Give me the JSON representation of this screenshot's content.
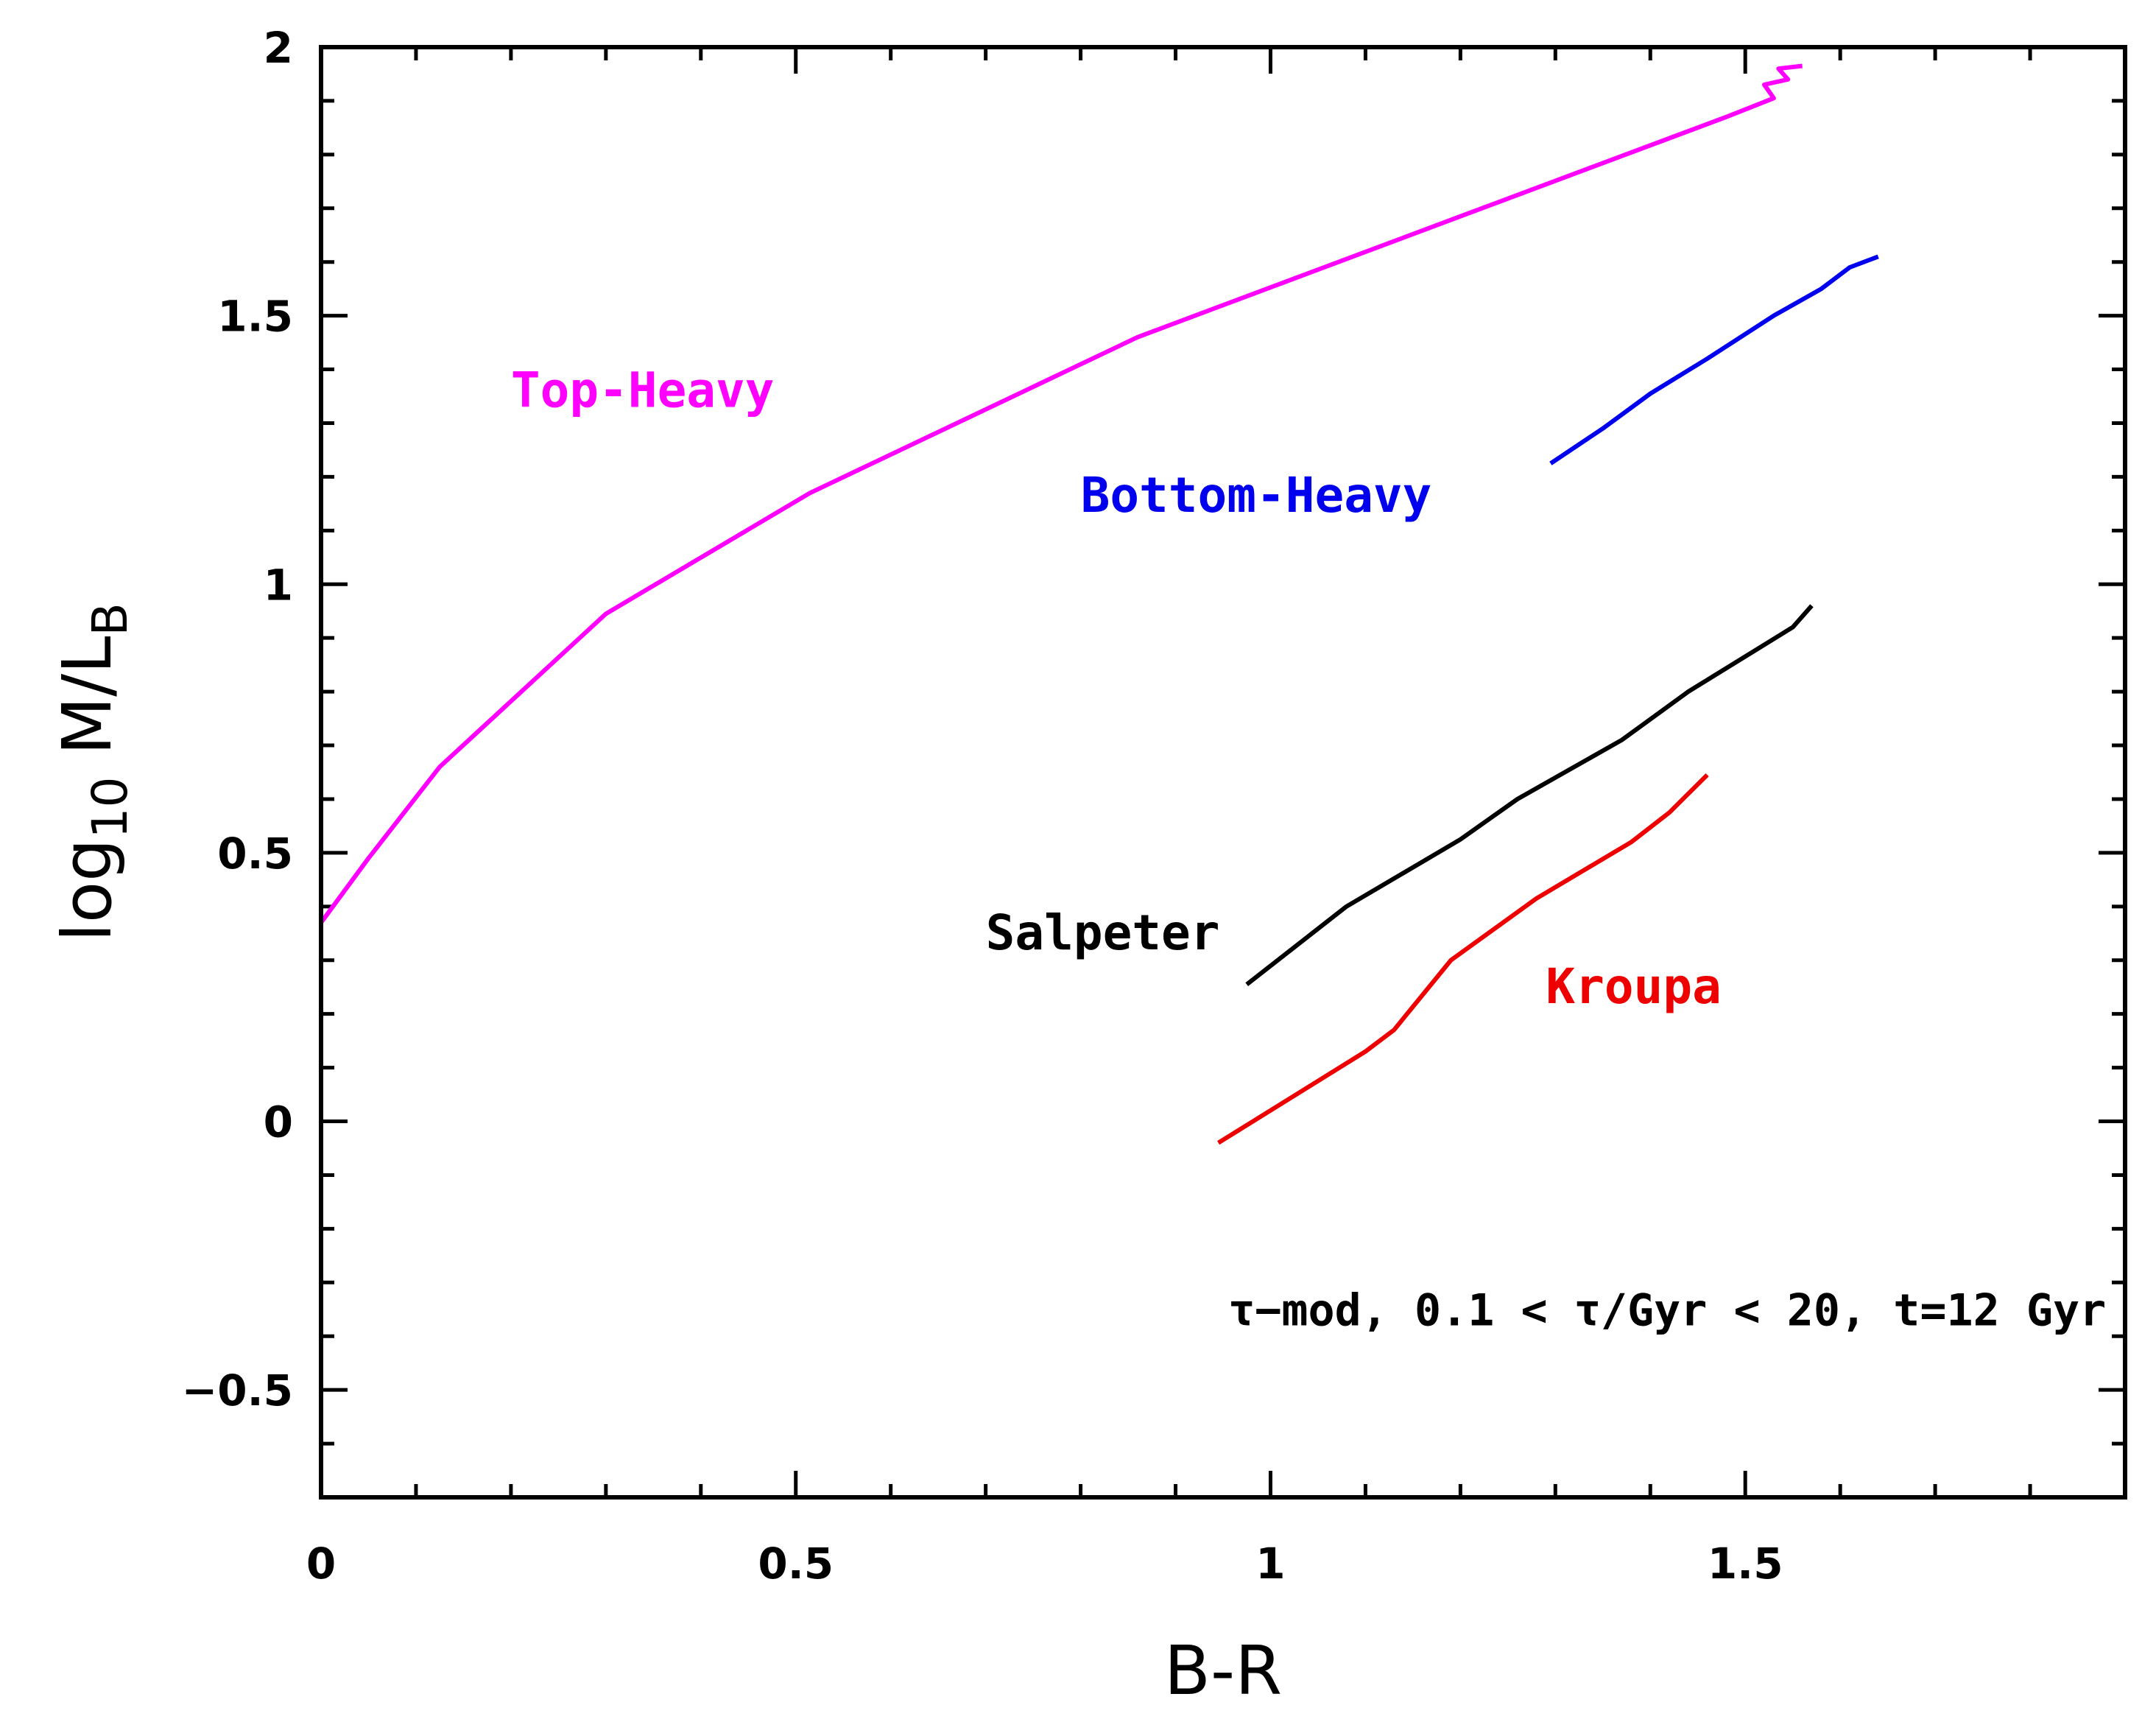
{
  "chart_data": {
    "type": "line",
    "xlabel": "B-R",
    "ylabel": {
      "prefix": "log",
      "prefix_sub": "10",
      "main": " M/L",
      "main_sub": "B"
    },
    "xlim": [
      0,
      1.9
    ],
    "ylim": [
      -0.7,
      2.0
    ],
    "x_major_ticks": [
      0,
      0.5,
      1,
      1.5
    ],
    "x_tick_labels": [
      "0",
      "0.5",
      "1",
      "1.5"
    ],
    "x_minor_step": 0.1,
    "y_major_ticks": [
      -0.5,
      0,
      0.5,
      1,
      1.5,
      2
    ],
    "y_tick_labels": [
      "−0.5",
      "0",
      "0.5",
      "1",
      "1.5",
      "2"
    ],
    "y_minor_step": 0.1,
    "grid": false,
    "legend": "none",
    "series": [
      {
        "name": "Top-Heavy",
        "color": "#ff00ff",
        "label_at": [
          0.2,
          1.33
        ],
        "points": [
          [
            0.0,
            0.37
          ],
          [
            0.05,
            0.49
          ],
          [
            0.125,
            0.66
          ],
          [
            0.3,
            0.945
          ],
          [
            0.515,
            1.17
          ],
          [
            0.86,
            1.46
          ],
          [
            1.2,
            1.685
          ],
          [
            1.48,
            1.87
          ],
          [
            1.53,
            1.905
          ],
          [
            1.52,
            1.93
          ],
          [
            1.545,
            1.94
          ],
          [
            1.535,
            1.96
          ],
          [
            1.56,
            1.965
          ]
        ]
      },
      {
        "name": "Bottom-Heavy",
        "color": "#0000ee",
        "label_at": [
          0.8,
          1.135
        ],
        "points": [
          [
            1.295,
            1.225
          ],
          [
            1.35,
            1.29
          ],
          [
            1.4,
            1.355
          ],
          [
            1.46,
            1.42
          ],
          [
            1.53,
            1.5
          ],
          [
            1.58,
            1.55
          ],
          [
            1.61,
            1.59
          ],
          [
            1.64,
            1.61
          ]
        ]
      },
      {
        "name": "Salpeter",
        "color": "#000000",
        "label_at": [
          0.7,
          0.32
        ],
        "points": [
          [
            0.975,
            0.255
          ],
          [
            1.08,
            0.4
          ],
          [
            1.2,
            0.525
          ],
          [
            1.26,
            0.6
          ],
          [
            1.37,
            0.71
          ],
          [
            1.44,
            0.8
          ],
          [
            1.55,
            0.92
          ],
          [
            1.57,
            0.96
          ]
        ]
      },
      {
        "name": "Kroupa",
        "color": "#ee0000",
        "label_at": [
          1.29,
          0.22
        ],
        "points": [
          [
            0.945,
            -0.04
          ],
          [
            1.1,
            0.13
          ],
          [
            1.13,
            0.17
          ],
          [
            1.19,
            0.3
          ],
          [
            1.28,
            0.415
          ],
          [
            1.38,
            0.52
          ],
          [
            1.42,
            0.575
          ],
          [
            1.46,
            0.645
          ]
        ]
      }
    ],
    "annotation": {
      "text": "τ−mod, 0.1 < τ/Gyr < 20, t=12 Gyr",
      "anchor": "end",
      "at": [
        1.88,
        -0.38
      ]
    }
  }
}
